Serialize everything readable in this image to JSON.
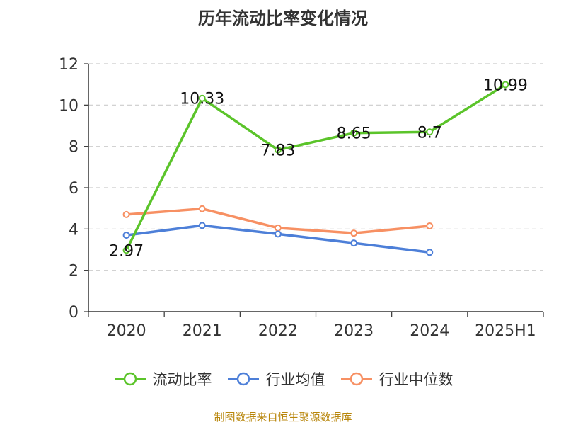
{
  "chart_data": {
    "type": "line",
    "title": "历年流动比率变化情况",
    "categories": [
      "2020",
      "2021",
      "2022",
      "2023",
      "2024",
      "2025H1"
    ],
    "ylim": [
      0,
      12
    ],
    "yticks": [
      0,
      2,
      4,
      6,
      8,
      10,
      12
    ],
    "grid": true,
    "legend_position": "bottom",
    "series": [
      {
        "name": "流动比率",
        "color": "#5bc42a",
        "values": [
          2.97,
          10.33,
          7.83,
          8.65,
          8.7,
          10.99
        ],
        "labels": [
          "2.97",
          "10.33",
          "7.83",
          "8.65",
          "8.7",
          "10.99"
        ]
      },
      {
        "name": "行业均值",
        "color": "#4d7fd8",
        "values": [
          3.7,
          4.17,
          3.76,
          3.32,
          2.87,
          null
        ]
      },
      {
        "name": "行业中位数",
        "color": "#f79063",
        "values": [
          4.7,
          4.98,
          4.05,
          3.8,
          4.15,
          null
        ]
      }
    ]
  },
  "source": "制图数据来自恒生聚源数据库"
}
